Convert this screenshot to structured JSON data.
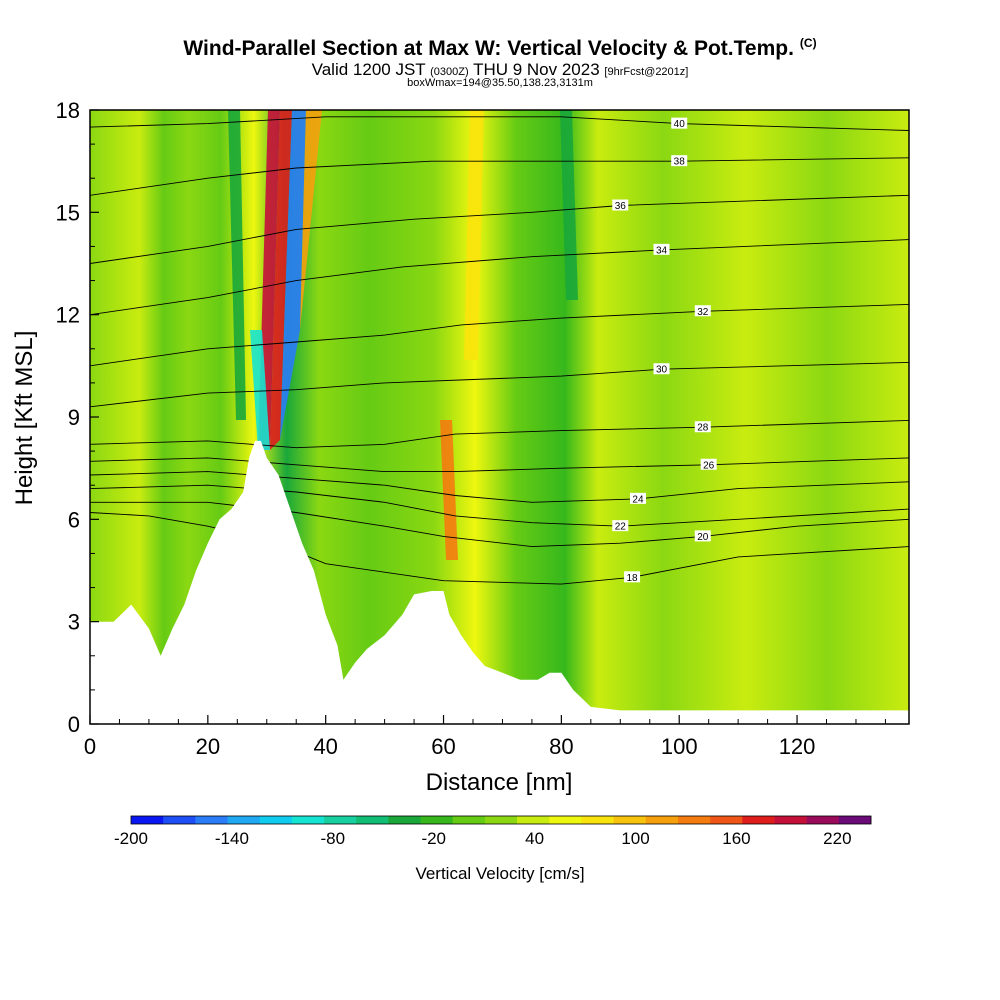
{
  "header": {
    "title": "Wind-Parallel Section at Max W: Vertical Velocity & Pot.Temp.",
    "copyright": "(C)",
    "valid_prefix": "Valid 1200 JST",
    "valid_z": "(0300Z)",
    "valid_date": "THU 9 Nov 2023",
    "forecast": "[9hrFcst@2201z]",
    "box_info": "boxWmax=194@35.50,138.23,3131m"
  },
  "chart_data": {
    "type": "heatmap",
    "xlabel": "Distance [nm]",
    "ylabel": "Height [Kft MSL]",
    "xlim": [
      0,
      139
    ],
    "ylim": [
      0,
      18
    ],
    "x_ticks": [
      0,
      20,
      40,
      60,
      80,
      100,
      120
    ],
    "y_ticks": [
      0,
      3,
      6,
      9,
      12,
      15,
      18
    ],
    "terrain_profile": [
      [
        0,
        3.0
      ],
      [
        4,
        3.0
      ],
      [
        7,
        3.5
      ],
      [
        10,
        2.8
      ],
      [
        12,
        2.0
      ],
      [
        14,
        2.8
      ],
      [
        16,
        3.5
      ],
      [
        18,
        4.5
      ],
      [
        20,
        5.3
      ],
      [
        22,
        6.0
      ],
      [
        24,
        6.3
      ],
      [
        26,
        6.8
      ],
      [
        27,
        7.8
      ],
      [
        28,
        8.3
      ],
      [
        29,
        8.3
      ],
      [
        30,
        7.8
      ],
      [
        32,
        7.3
      ],
      [
        34,
        6.3
      ],
      [
        36,
        5.3
      ],
      [
        38,
        4.5
      ],
      [
        40,
        3.2
      ],
      [
        42,
        2.3
      ],
      [
        43,
        1.3
      ],
      [
        45,
        1.8
      ],
      [
        47,
        2.2
      ],
      [
        50,
        2.6
      ],
      [
        53,
        3.2
      ],
      [
        55,
        3.8
      ],
      [
        58,
        3.9
      ],
      [
        60,
        3.9
      ],
      [
        61,
        3.2
      ],
      [
        63,
        2.6
      ],
      [
        65,
        2.1
      ],
      [
        67,
        1.7
      ],
      [
        70,
        1.5
      ],
      [
        73,
        1.3
      ],
      [
        76,
        1.3
      ],
      [
        78,
        1.5
      ],
      [
        80,
        1.5
      ],
      [
        82,
        1.0
      ],
      [
        85,
        0.5
      ],
      [
        90,
        0.4
      ],
      [
        100,
        0.4
      ],
      [
        110,
        0.4
      ],
      [
        120,
        0.4
      ],
      [
        130,
        0.4
      ],
      [
        139,
        0.4
      ]
    ],
    "theta_contours": [
      {
        "label": "18",
        "label_x": 92,
        "pts": [
          [
            0,
            6.2
          ],
          [
            10,
            6.1
          ],
          [
            20,
            5.8
          ],
          [
            30,
            5.4
          ],
          [
            40,
            4.7
          ],
          [
            60,
            4.2
          ],
          [
            80,
            4.1
          ],
          [
            92,
            4.3
          ],
          [
            110,
            4.9
          ],
          [
            139,
            5.2
          ]
        ]
      },
      {
        "label": "20",
        "label_x": 104,
        "pts": [
          [
            0,
            6.5
          ],
          [
            20,
            6.5
          ],
          [
            35,
            6.2
          ],
          [
            50,
            5.8
          ],
          [
            60,
            5.5
          ],
          [
            75,
            5.2
          ],
          [
            90,
            5.3
          ],
          [
            104,
            5.5
          ],
          [
            120,
            5.8
          ],
          [
            139,
            6.0
          ]
        ]
      },
      {
        "label": "22",
        "label_x": 90,
        "pts": [
          [
            0,
            6.9
          ],
          [
            20,
            7.0
          ],
          [
            35,
            6.8
          ],
          [
            50,
            6.5
          ],
          [
            62,
            6.1
          ],
          [
            75,
            5.9
          ],
          [
            90,
            5.8
          ],
          [
            110,
            6.0
          ],
          [
            139,
            6.3
          ]
        ]
      },
      {
        "label": "24",
        "label_x": 93,
        "pts": [
          [
            0,
            7.3
          ],
          [
            20,
            7.4
          ],
          [
            35,
            7.2
          ],
          [
            50,
            7.0
          ],
          [
            62,
            6.7
          ],
          [
            75,
            6.5
          ],
          [
            93,
            6.6
          ],
          [
            110,
            6.9
          ],
          [
            139,
            7.1
          ]
        ]
      },
      {
        "label": "26",
        "label_x": 105,
        "pts": [
          [
            0,
            7.7
          ],
          [
            20,
            7.8
          ],
          [
            35,
            7.6
          ],
          [
            50,
            7.4
          ],
          [
            62,
            7.4
          ],
          [
            80,
            7.5
          ],
          [
            105,
            7.6
          ],
          [
            139,
            7.8
          ]
        ]
      },
      {
        "label": "28",
        "label_x": 104,
        "pts": [
          [
            0,
            8.2
          ],
          [
            20,
            8.3
          ],
          [
            35,
            8.1
          ],
          [
            50,
            8.2
          ],
          [
            62,
            8.5
          ],
          [
            80,
            8.6
          ],
          [
            104,
            8.7
          ],
          [
            139,
            8.9
          ]
        ]
      },
      {
        "label": "30",
        "label_x": 97,
        "pts": [
          [
            0,
            9.3
          ],
          [
            20,
            9.7
          ],
          [
            35,
            9.8
          ],
          [
            50,
            10.0
          ],
          [
            65,
            10.1
          ],
          [
            80,
            10.2
          ],
          [
            97,
            10.4
          ],
          [
            139,
            10.6
          ]
        ]
      },
      {
        "label": "32",
        "label_x": 104,
        "pts": [
          [
            0,
            10.5
          ],
          [
            20,
            11.0
          ],
          [
            35,
            11.2
          ],
          [
            50,
            11.4
          ],
          [
            63,
            11.7
          ],
          [
            80,
            11.9
          ],
          [
            104,
            12.1
          ],
          [
            139,
            12.3
          ]
        ]
      },
      {
        "label": "34",
        "label_x": 97,
        "pts": [
          [
            0,
            12.0
          ],
          [
            20,
            12.5
          ],
          [
            35,
            13.0
          ],
          [
            53,
            13.4
          ],
          [
            75,
            13.7
          ],
          [
            97,
            13.9
          ],
          [
            139,
            14.2
          ]
        ]
      },
      {
        "label": "36",
        "label_x": 90,
        "pts": [
          [
            0,
            13.5
          ],
          [
            20,
            14.0
          ],
          [
            35,
            14.5
          ],
          [
            55,
            14.8
          ],
          [
            75,
            15.0
          ],
          [
            90,
            15.2
          ],
          [
            139,
            15.5
          ]
        ]
      },
      {
        "label": "38",
        "label_x": 100,
        "pts": [
          [
            0,
            15.5
          ],
          [
            20,
            16.0
          ],
          [
            35,
            16.3
          ],
          [
            58,
            16.5
          ],
          [
            80,
            16.5
          ],
          [
            100,
            16.5
          ],
          [
            139,
            16.6
          ]
        ]
      },
      {
        "label": "40",
        "label_x": 100,
        "pts": [
          [
            0,
            17.5
          ],
          [
            20,
            17.6
          ],
          [
            40,
            17.8
          ],
          [
            60,
            17.8
          ],
          [
            80,
            17.8
          ],
          [
            100,
            17.6
          ],
          [
            139,
            17.4
          ]
        ]
      }
    ],
    "colorbar": {
      "title": "Vertical Velocity [cm/s]",
      "min": -200,
      "max": 240,
      "step": 20,
      "colors": [
        "#0a17f2",
        "#1e4ef5",
        "#2a7cf7",
        "#20a8f3",
        "#10cdef",
        "#16e4d2",
        "#18cf9f",
        "#12bd74",
        "#1aa73a",
        "#36b81c",
        "#66cb14",
        "#8bd812",
        "#c9ec10",
        "#eef70f",
        "#f9e30c",
        "#f7c30c",
        "#f6a00d",
        "#f47b10",
        "#ef5618",
        "#e01d1d",
        "#c5103a",
        "#9b0b5c",
        "#6b0b78"
      ],
      "labels": [
        "-200",
        "-140",
        "-80",
        "-20",
        "40",
        "100",
        "160",
        "220"
      ],
      "label_values": [
        -200,
        -140,
        -80,
        -20,
        40,
        100,
        160,
        220
      ]
    }
  }
}
